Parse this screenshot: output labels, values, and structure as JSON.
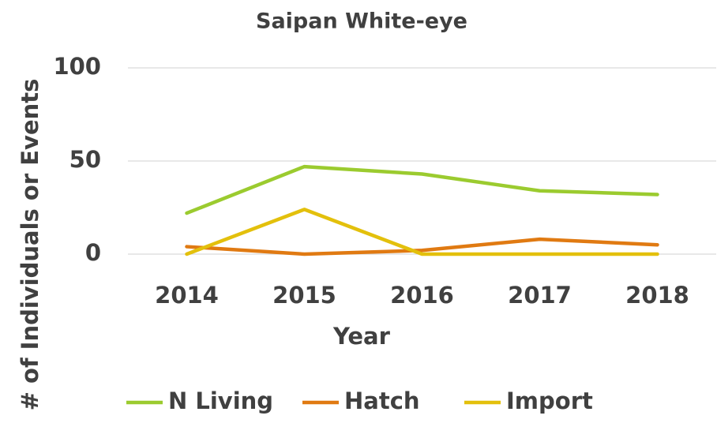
{
  "chart_data": {
    "type": "line",
    "title": "Saipan White-eye",
    "x_label": "Year",
    "y_label": "# of Individuals or Events",
    "categories": [
      "2014",
      "2015",
      "2016",
      "2017",
      "2018"
    ],
    "series": [
      {
        "name": "N Living",
        "color": "#9bcb2f",
        "values": [
          22,
          47,
          43,
          34,
          32
        ]
      },
      {
        "name": "Hatch",
        "color": "#e07a12",
        "values": [
          4,
          0,
          2,
          8,
          5
        ]
      },
      {
        "name": "Import",
        "color": "#e3c00c",
        "values": [
          0,
          24,
          0,
          0,
          0
        ]
      }
    ],
    "ylim": [
      0,
      100
    ],
    "yticks": [
      0,
      50,
      100
    ],
    "grid": true,
    "legend": "bottom"
  }
}
